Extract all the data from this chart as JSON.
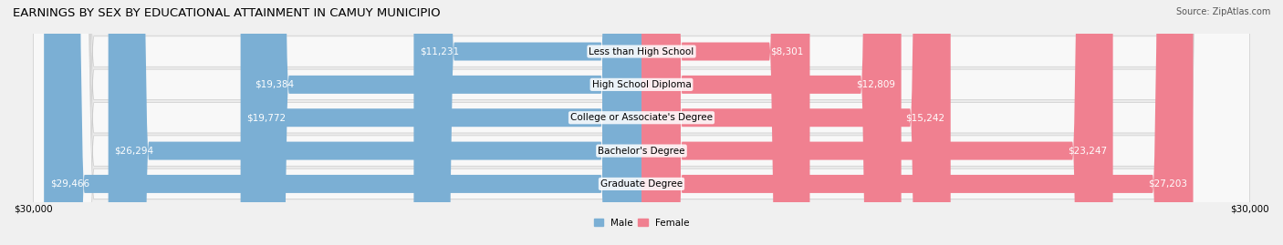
{
  "title": "EARNINGS BY SEX BY EDUCATIONAL ATTAINMENT IN CAMUY MUNICIPIO",
  "source": "Source: ZipAtlas.com",
  "categories": [
    "Less than High School",
    "High School Diploma",
    "College or Associate's Degree",
    "Bachelor's Degree",
    "Graduate Degree"
  ],
  "male_values": [
    11231,
    19384,
    19772,
    26294,
    29466
  ],
  "female_values": [
    8301,
    12809,
    15242,
    23247,
    27203
  ],
  "male_color": "#7bafd4",
  "female_color": "#f08090",
  "max_value": 30000,
  "bar_height": 0.55,
  "background_color": "#f0f0f0",
  "row_colors": [
    "#ffffff",
    "#f5f5f5"
  ],
  "title_fontsize": 9.5,
  "label_fontsize": 7.5,
  "value_fontsize": 7.5
}
